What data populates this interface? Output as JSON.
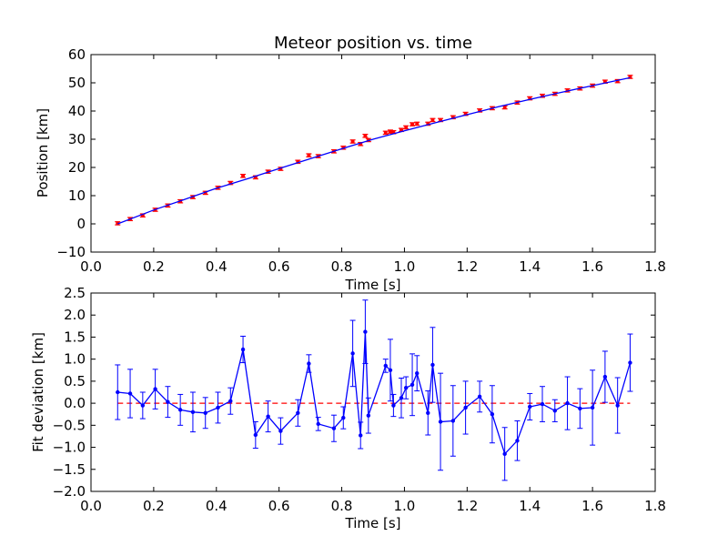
{
  "chart_data": [
    {
      "type": "scatter",
      "title": "Meteor position vs. time",
      "xlabel": "Time [s]",
      "ylabel": "Position [km]",
      "xlim": [
        0.0,
        1.8
      ],
      "ylim": [
        -10,
        60
      ],
      "xticks": [
        "0.0",
        "0.2",
        "0.4",
        "0.6",
        "0.8",
        "1.0",
        "1.2",
        "1.4",
        "1.6",
        "1.8"
      ],
      "yticks": [
        "−10",
        "0",
        "10",
        "20",
        "30",
        "40",
        "50",
        "60"
      ],
      "grid": false,
      "series": [
        {
          "kind": "errorbar-points",
          "color": "#ff0000",
          "x": [
            0.085,
            0.125,
            0.165,
            0.205,
            0.245,
            0.285,
            0.325,
            0.365,
            0.405,
            0.445,
            0.485,
            0.525,
            0.565,
            0.605,
            0.66,
            0.695,
            0.725,
            0.775,
            0.805,
            0.835,
            0.86,
            0.875,
            0.885,
            0.94,
            0.955,
            0.965,
            0.99,
            1.005,
            1.025,
            1.04,
            1.075,
            1.09,
            1.115,
            1.155,
            1.195,
            1.24,
            1.28,
            1.32,
            1.36,
            1.4,
            1.44,
            1.48,
            1.52,
            1.56,
            1.6,
            1.64,
            1.68,
            1.72
          ],
          "y": [
            0.2,
            1.7,
            3.0,
            5.0,
            6.5,
            8.0,
            9.5,
            11.0,
            12.8,
            14.5,
            17.0,
            16.5,
            18.5,
            19.5,
            22.0,
            24.3,
            24.0,
            25.7,
            27.0,
            29.2,
            28.3,
            31.2,
            29.7,
            32.3,
            32.7,
            32.5,
            33.3,
            34.2,
            35.3,
            35.5,
            35.5,
            36.8,
            36.8,
            37.8,
            39.0,
            40.2,
            41.0,
            41.3,
            43.0,
            44.5,
            45.4,
            46.1,
            47.3,
            48.0,
            49.0,
            50.4,
            50.6,
            52.1
          ],
          "yerr": 0.55
        },
        {
          "kind": "fit-curve",
          "color": "#0000ff",
          "x": [
            0.085,
            0.2,
            0.3,
            0.4,
            0.5,
            0.6,
            0.7,
            0.8,
            0.9,
            1.0,
            1.1,
            1.2,
            1.3,
            1.4,
            1.5,
            1.6,
            1.72
          ],
          "y": [
            0.0,
            4.9,
            8.7,
            12.6,
            16.0,
            19.6,
            23.1,
            26.6,
            30.0,
            33.0,
            35.9,
            38.7,
            41.5,
            44.1,
            46.6,
            49.0,
            51.8
          ]
        }
      ]
    },
    {
      "type": "line",
      "title": "",
      "xlabel": "Time [s]",
      "ylabel": "Fit deviation [km]",
      "xlim": [
        0.0,
        1.8
      ],
      "ylim": [
        -2.0,
        2.5
      ],
      "xticks": [
        "0.0",
        "0.2",
        "0.4",
        "0.6",
        "0.8",
        "1.0",
        "1.2",
        "1.4",
        "1.6",
        "1.8"
      ],
      "yticks": [
        "−2.0",
        "−1.5",
        "−1.0",
        "−0.5",
        "0.0",
        "0.5",
        "1.0",
        "1.5",
        "2.0",
        "2.5"
      ],
      "grid": false,
      "reference_line": {
        "y": 0.0,
        "color": "#ff0000",
        "style": "dashed"
      },
      "series": [
        {
          "kind": "errorbar-line",
          "color": "#0000ff",
          "x": [
            0.085,
            0.125,
            0.165,
            0.205,
            0.245,
            0.285,
            0.325,
            0.365,
            0.405,
            0.445,
            0.485,
            0.525,
            0.565,
            0.605,
            0.66,
            0.695,
            0.725,
            0.775,
            0.805,
            0.835,
            0.86,
            0.875,
            0.885,
            0.94,
            0.955,
            0.965,
            0.99,
            1.005,
            1.025,
            1.04,
            1.075,
            1.09,
            1.115,
            1.155,
            1.195,
            1.24,
            1.28,
            1.32,
            1.36,
            1.4,
            1.44,
            1.48,
            1.52,
            1.56,
            1.6,
            1.64,
            1.68,
            1.72
          ],
          "y": [
            0.25,
            0.22,
            -0.05,
            0.32,
            0.03,
            -0.15,
            -0.2,
            -0.22,
            -0.1,
            0.05,
            1.22,
            -0.72,
            -0.3,
            -0.63,
            -0.22,
            0.9,
            -0.47,
            -0.57,
            -0.33,
            1.13,
            -0.73,
            1.62,
            -0.28,
            0.85,
            0.75,
            -0.05,
            0.12,
            0.35,
            0.42,
            0.68,
            -0.22,
            0.87,
            -0.42,
            -0.4,
            -0.1,
            0.15,
            -0.25,
            -1.15,
            -0.85,
            -0.08,
            -0.02,
            -0.17,
            0.0,
            -0.12,
            -0.1,
            0.6,
            -0.05,
            0.92
          ],
          "yerr": [
            0.62,
            0.55,
            0.3,
            0.45,
            0.35,
            0.35,
            0.45,
            0.35,
            0.35,
            0.3,
            0.3,
            0.3,
            0.35,
            0.3,
            0.3,
            0.2,
            0.15,
            0.3,
            0.25,
            0.75,
            0.3,
            0.72,
            0.4,
            0.15,
            0.7,
            0.25,
            0.45,
            0.25,
            0.7,
            0.4,
            0.5,
            0.85,
            1.1,
            0.8,
            0.6,
            0.35,
            0.65,
            0.6,
            0.45,
            0.3,
            0.4,
            0.25,
            0.6,
            0.45,
            0.85,
            0.58,
            0.63,
            0.65
          ]
        }
      ]
    }
  ]
}
